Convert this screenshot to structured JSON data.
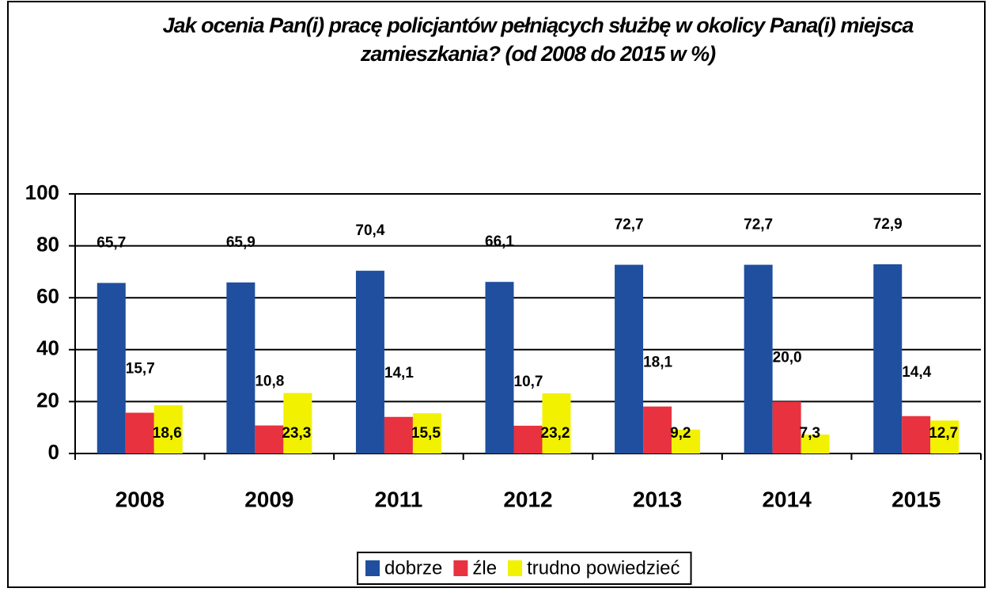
{
  "chart_data": {
    "type": "bar",
    "title": "Jak ocenia Pan(i) pracę policjantów pełniących służbę w okolicy Pana(i) miejsca zamieszkania? (od 2008 do 2015 w %)",
    "categories": [
      "2008",
      "2009",
      "2011",
      "2012",
      "2013",
      "2014",
      "2015"
    ],
    "series": [
      {
        "name": "dobrze",
        "color": "#1f4f9e",
        "values": [
          65.7,
          65.9,
          70.4,
          66.1,
          72.7,
          72.7,
          72.9
        ],
        "value_labels": [
          "65,7",
          "65,9",
          "70,4",
          "66,1",
          "72,7",
          "72,7",
          "72,9"
        ]
      },
      {
        "name": "źle",
        "color": "#e8323f",
        "values": [
          15.7,
          10.8,
          14.1,
          10.7,
          18.1,
          20.0,
          14.4
        ],
        "value_labels": [
          "15,7",
          "10,8",
          "14,1",
          "10,7",
          "18,1",
          "20,0",
          "14,4"
        ]
      },
      {
        "name": "trudno powiedzieć",
        "color": "#f2f200",
        "values": [
          18.6,
          23.3,
          15.5,
          23.2,
          9.2,
          7.3,
          12.7
        ],
        "value_labels": [
          "18,6",
          "23,3",
          "15,5",
          "23,2",
          "9,2",
          "7,3",
          "12,7"
        ]
      }
    ],
    "ylim": [
      0,
      100
    ],
    "yticks": [
      0,
      20,
      40,
      60,
      80,
      100
    ],
    "grid": true,
    "legend": "bottom"
  }
}
